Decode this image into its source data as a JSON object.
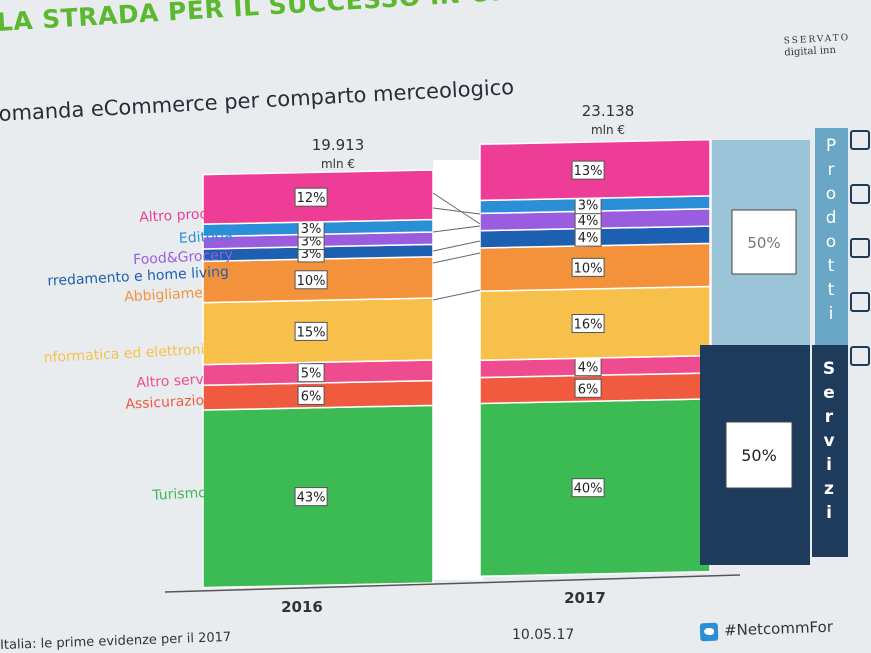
{
  "header": {
    "title": "LA STRADA PER IL SUCCESSO IN UN CONTESTO IN FORTE",
    "subtitle": "omanda eCommerce per comparto merceologico",
    "logo_line1": "SSERVATO",
    "logo_line2": "digital inn"
  },
  "chart_data": {
    "type": "bar",
    "stacked": true,
    "title": "omanda eCommerce per comparto merceologico",
    "categories": [
      "2016",
      "2017"
    ],
    "totals": [
      {
        "value": "19.913",
        "unit": "mln €"
      },
      {
        "value": "23.138",
        "unit": "mln €"
      }
    ],
    "series": [
      {
        "name": "Turismo",
        "values": [
          43,
          40
        ],
        "color": "#3cba54"
      },
      {
        "name": "Assicurazioni",
        "values": [
          6,
          6
        ],
        "color": "#f05a3e"
      },
      {
        "name": "Altro servizi",
        "values": [
          5,
          4
        ],
        "color": "#ef4b8f"
      },
      {
        "name": "Informatica ed elettronica",
        "values": [
          15,
          16
        ],
        "color": "#f7c04a"
      },
      {
        "name": "Abbigliamento",
        "values": [
          10,
          10
        ],
        "color": "#f3923a"
      },
      {
        "name": "Arredamento e home living",
        "values": [
          3,
          4
        ],
        "color": "#1d5fb0"
      },
      {
        "name": "Food&Grocery",
        "values": [
          3,
          4
        ],
        "color": "#9b5de0"
      },
      {
        "name": "Editoria",
        "values": [
          3,
          3
        ],
        "color": "#2a8fd6"
      },
      {
        "name": "Altro prodotti",
        "values": [
          12,
          13
        ],
        "color": "#ee3d96"
      }
    ],
    "labels": [
      [
        "43%",
        "6%",
        "5%",
        "15%",
        "10%",
        "3%",
        "3%",
        "3%",
        "12%"
      ],
      [
        "40%",
        "6%",
        "4%",
        "16%",
        "10%",
        "4%",
        "4%",
        "3%",
        "13%"
      ]
    ],
    "legend_labels": [
      "Turismo",
      "Assicurazioni",
      "Altro servizi",
      "nformatica ed elettronica",
      "Abbigliamento",
      "rredamento e home living",
      "Food&Grocery",
      "Editoria",
      "Altro prodotti"
    ],
    "groups": [
      {
        "name": "Prodotti",
        "share": "50%",
        "color": "#9cc5d9",
        "letters": [
          "P",
          "r",
          "o",
          "d",
          "o",
          "t",
          "t",
          "i"
        ]
      },
      {
        "name": "Servizi",
        "share": "50%",
        "color": "#1e3b5c",
        "letters": [
          "S",
          "e",
          "r",
          "v",
          "i",
          "z",
          "i"
        ]
      }
    ]
  },
  "footer": {
    "left": "Italia: le prime evidenze per il 2017",
    "date": "10.05.17",
    "twitter": "#NetcommFor"
  }
}
